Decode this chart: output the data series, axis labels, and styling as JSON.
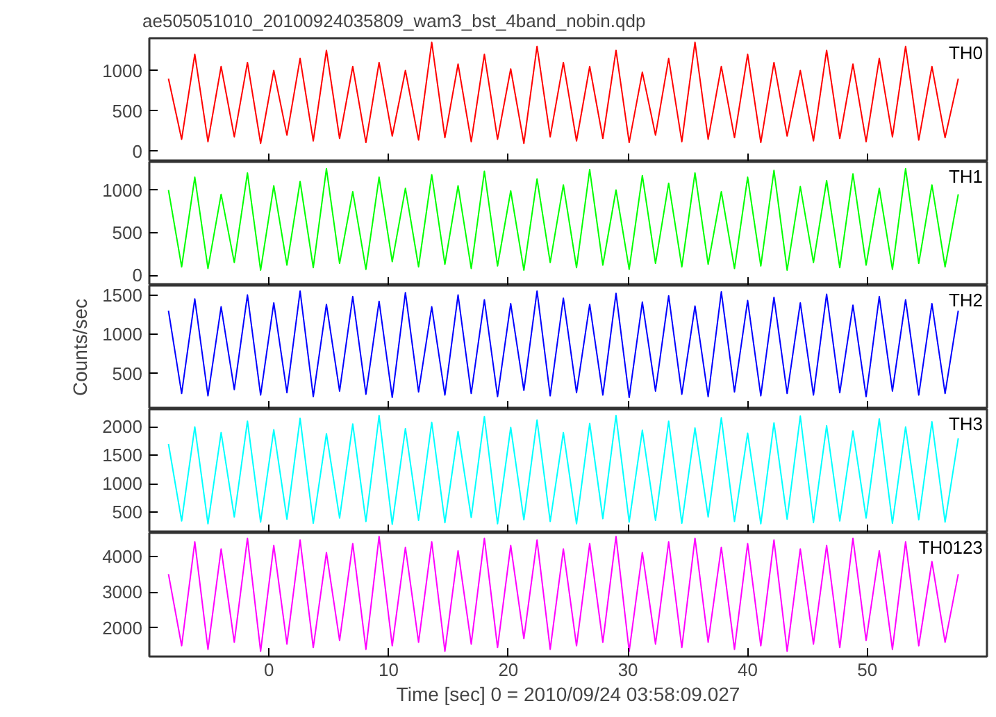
{
  "chart_data": [
    {
      "type": "line",
      "title": "ae505051010_20100924035809_wam3_bst_4band_nobin.qdp",
      "xlim": [
        -10,
        60
      ],
      "xticks": [
        0,
        10,
        20,
        30,
        40,
        50
      ],
      "ylim": [
        -130,
        1400
      ],
      "yticks": [
        0,
        500,
        1000
      ],
      "tick_labels": "y",
      "grid": false,
      "marker": "none",
      "line_style": "solid",
      "x": [
        -8.4,
        -7.3,
        -6.2,
        -5.1,
        -4.0,
        -2.9,
        -1.8,
        -0.7,
        0.4,
        1.5,
        2.6,
        3.7,
        4.8,
        5.9,
        7.0,
        8.1,
        9.2,
        10.3,
        11.4,
        12.5,
        13.6,
        14.7,
        15.8,
        16.9,
        18.0,
        19.1,
        20.2,
        21.3,
        22.4,
        23.5,
        24.6,
        25.7,
        26.8,
        27.9,
        29.0,
        30.1,
        31.2,
        32.3,
        33.4,
        34.5,
        35.6,
        36.7,
        37.8,
        38.9,
        40.0,
        41.1,
        42.2,
        43.3,
        44.4,
        45.5,
        46.6,
        47.7,
        48.8,
        49.9,
        51.0,
        52.1,
        53.2,
        54.3,
        55.4,
        56.5,
        57.6
      ],
      "series": [
        {
          "name": "TH0",
          "color": "#ff0000",
          "values": [
            900,
            150,
            1200,
            120,
            1050,
            180,
            1100,
            100,
            1000,
            200,
            1150,
            130,
            1250,
            160,
            1050,
            110,
            1100,
            190,
            1000,
            140,
            1350,
            170,
            1080,
            120,
            1200,
            150,
            1020,
            100,
            1300,
            180,
            1100,
            130,
            1050,
            160,
            1250,
            110,
            980,
            200,
            1150,
            120,
            1350,
            150,
            1050,
            170,
            1200,
            110,
            1100,
            190,
            1000,
            130,
            1250,
            160,
            1080,
            120,
            1150,
            180,
            1300,
            140,
            1050,
            170,
            900
          ]
        }
      ]
    },
    {
      "type": "line",
      "xlim": [
        -10,
        60
      ],
      "xticks": [
        0,
        10,
        20,
        30,
        40,
        50
      ],
      "ylim": [
        -120,
        1330
      ],
      "yticks": [
        0,
        500,
        1000
      ],
      "tick_labels": "y",
      "grid": false,
      "marker": "none",
      "line_style": "solid",
      "x": [
        -8.4,
        -7.3,
        -6.2,
        -5.1,
        -4.0,
        -2.9,
        -1.8,
        -0.7,
        0.4,
        1.5,
        2.6,
        3.7,
        4.8,
        5.9,
        7.0,
        8.1,
        9.2,
        10.3,
        11.4,
        12.5,
        13.6,
        14.7,
        15.8,
        16.9,
        18.0,
        19.1,
        20.2,
        21.3,
        22.4,
        23.5,
        24.6,
        25.7,
        26.8,
        27.9,
        29.0,
        30.1,
        31.2,
        32.3,
        33.4,
        34.5,
        35.6,
        36.7,
        37.8,
        38.9,
        40.0,
        41.1,
        42.2,
        43.3,
        44.4,
        45.5,
        46.6,
        47.7,
        48.8,
        49.9,
        51.0,
        52.1,
        53.2,
        54.3,
        55.4,
        56.5,
        57.6
      ],
      "series": [
        {
          "name": "TH1",
          "color": "#00ff00",
          "values": [
            1000,
            100,
            1150,
            80,
            950,
            150,
            1200,
            60,
            1050,
            120,
            1100,
            90,
            1250,
            140,
            980,
            70,
            1150,
            160,
            1020,
            100,
            1180,
            130,
            1050,
            80,
            1220,
            110,
            990,
            60,
            1130,
            150,
            1060,
            90,
            1240,
            120,
            1000,
            70,
            1170,
            140,
            1080,
            100,
            1200,
            130,
            980,
            80,
            1150,
            110,
            1230,
            60,
            1040,
            150,
            1110,
            90,
            1190,
            120,
            1020,
            70,
            1250,
            140,
            1060,
            100,
            950
          ]
        }
      ]
    },
    {
      "type": "line",
      "ylabel": "Counts/sec",
      "xlim": [
        -10,
        60
      ],
      "xticks": [
        0,
        10,
        20,
        30,
        40,
        50
      ],
      "ylim": [
        50,
        1620
      ],
      "yticks": [
        500,
        1000,
        1500
      ],
      "tick_labels": "y",
      "grid": false,
      "marker": "none",
      "line_style": "solid",
      "x": [
        -8.4,
        -7.3,
        -6.2,
        -5.1,
        -4.0,
        -2.9,
        -1.8,
        -0.7,
        0.4,
        1.5,
        2.6,
        3.7,
        4.8,
        5.9,
        7.0,
        8.1,
        9.2,
        10.3,
        11.4,
        12.5,
        13.6,
        14.7,
        15.8,
        16.9,
        18.0,
        19.1,
        20.2,
        21.3,
        22.4,
        23.5,
        24.6,
        25.7,
        26.8,
        27.9,
        29.0,
        30.1,
        31.2,
        32.3,
        33.4,
        34.5,
        35.6,
        36.7,
        37.8,
        38.9,
        40.0,
        41.1,
        42.2,
        43.3,
        44.4,
        45.5,
        46.6,
        47.7,
        48.8,
        49.9,
        51.0,
        52.1,
        53.2,
        54.3,
        55.4,
        56.5,
        57.6
      ],
      "series": [
        {
          "name": "TH2",
          "color": "#0000ff",
          "values": [
            1300,
            250,
            1450,
            220,
            1350,
            300,
            1500,
            230,
            1400,
            260,
            1550,
            210,
            1380,
            280,
            1480,
            240,
            1420,
            200,
            1530,
            270,
            1350,
            230,
            1500,
            250,
            1440,
            210,
            1390,
            290,
            1550,
            220,
            1460,
            260,
            1380,
            230,
            1520,
            200,
            1410,
            280,
            1490,
            240,
            1360,
            210,
            1540,
            270,
            1430,
            220,
            1470,
            250,
            1400,
            230,
            1510,
            260,
            1370,
            210,
            1480,
            280,
            1440,
            230,
            1390,
            250,
            1300
          ]
        }
      ]
    },
    {
      "type": "line",
      "xlim": [
        -10,
        60
      ],
      "xticks": [
        0,
        10,
        20,
        30,
        40,
        50
      ],
      "ylim": [
        140,
        2310
      ],
      "yticks": [
        500,
        1000,
        1500,
        2000
      ],
      "tick_labels": "y",
      "grid": false,
      "marker": "none",
      "line_style": "solid",
      "x": [
        -8.4,
        -7.3,
        -6.2,
        -5.1,
        -4.0,
        -2.9,
        -1.8,
        -0.7,
        0.4,
        1.5,
        2.6,
        3.7,
        4.8,
        5.9,
        7.0,
        8.1,
        9.2,
        10.3,
        11.4,
        12.5,
        13.6,
        14.7,
        15.8,
        16.9,
        18.0,
        19.1,
        20.2,
        21.3,
        22.4,
        23.5,
        24.6,
        25.7,
        26.8,
        27.9,
        29.0,
        30.1,
        31.2,
        32.3,
        33.4,
        34.5,
        35.6,
        36.7,
        37.8,
        38.9,
        40.0,
        41.1,
        42.2,
        43.3,
        44.4,
        45.5,
        46.6,
        47.7,
        48.8,
        49.9,
        51.0,
        52.1,
        53.2,
        54.3,
        55.4,
        56.5,
        57.6
      ],
      "series": [
        {
          "name": "TH3",
          "color": "#00ffff",
          "values": [
            1700,
            350,
            2000,
            300,
            1900,
            420,
            2100,
            330,
            1950,
            380,
            2150,
            310,
            1880,
            400,
            2050,
            340,
            2200,
            290,
            1970,
            360,
            2080,
            320,
            1920,
            410,
            2180,
            300,
            1990,
            370,
            2120,
            340,
            1900,
            300,
            2060,
            390,
            2200,
            330,
            1940,
            360,
            2100,
            310,
            1980,
            420,
            2160,
            340,
            1890,
            300,
            2070,
            380,
            2190,
            320,
            2020,
            350,
            1930,
            400,
            2140,
            310,
            2000,
            370,
            2090,
            330,
            1800
          ]
        }
      ]
    },
    {
      "type": "line",
      "xlabel": "Time [sec] 0 = 2010/09/24 03:58:09.027",
      "xlim": [
        -10,
        60
      ],
      "xticks": [
        0,
        10,
        20,
        30,
        40,
        50
      ],
      "ylim": [
        1200,
        4650
      ],
      "yticks": [
        2000,
        3000,
        4000
      ],
      "grid": false,
      "marker": "none",
      "line_style": "solid",
      "x": [
        -8.4,
        -7.3,
        -6.2,
        -5.1,
        -4.0,
        -2.9,
        -1.8,
        -0.7,
        0.4,
        1.5,
        2.6,
        3.7,
        4.8,
        5.9,
        7.0,
        8.1,
        9.2,
        10.3,
        11.4,
        12.5,
        13.6,
        14.7,
        15.8,
        16.9,
        18.0,
        19.1,
        20.2,
        21.3,
        22.4,
        23.5,
        24.6,
        25.7,
        26.8,
        27.9,
        29.0,
        30.1,
        31.2,
        32.3,
        33.4,
        34.5,
        35.6,
        36.7,
        37.8,
        38.9,
        40.0,
        41.1,
        42.2,
        43.3,
        44.4,
        45.5,
        46.6,
        47.7,
        48.8,
        49.9,
        51.0,
        52.1,
        53.2,
        54.3,
        55.4,
        56.5,
        57.6
      ],
      "series": [
        {
          "name": "TH0123",
          "color": "#ff00ff",
          "values": [
            3500,
            1500,
            4400,
            1400,
            4200,
            1600,
            4500,
            1350,
            4300,
            1550,
            4450,
            1450,
            4100,
            1650,
            4350,
            1400,
            4550,
            1500,
            4250,
            1600,
            4400,
            1350,
            4150,
            1550,
            4500,
            1450,
            4300,
            1700,
            4450,
            1400,
            4200,
            1500,
            4350,
            1600,
            4550,
            1350,
            4100,
            1550,
            4400,
            1450,
            4500,
            1600,
            4250,
            1400,
            4350,
            1500,
            4450,
            1350,
            4200,
            1550,
            4300,
            1450,
            4500,
            1650,
            4150,
            1400,
            4400,
            1500,
            3850,
            1600,
            3500
          ]
        }
      ]
    }
  ]
}
